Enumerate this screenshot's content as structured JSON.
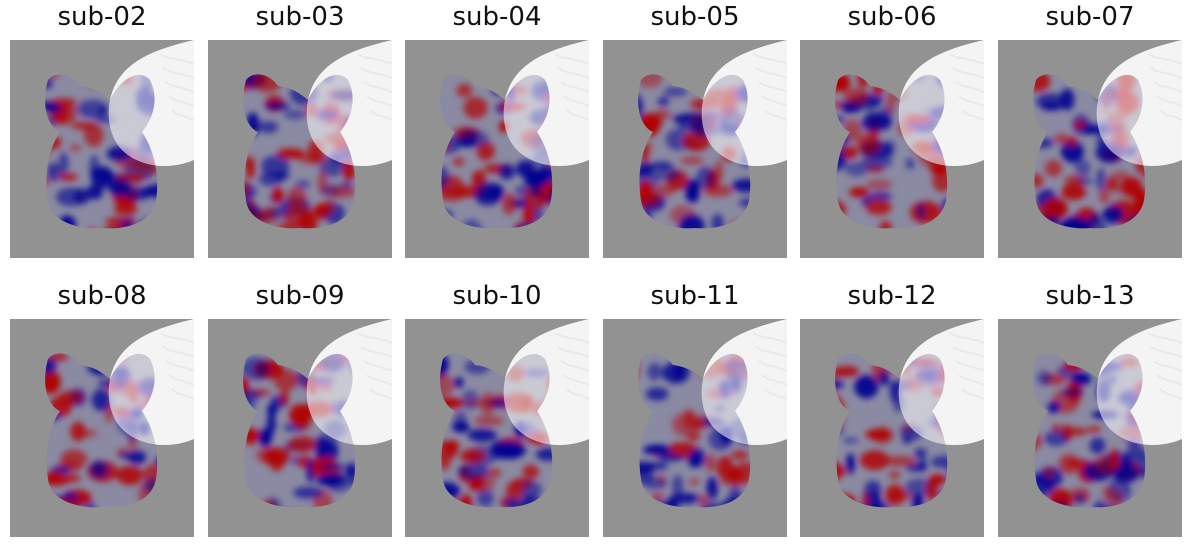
{
  "figure": {
    "panels": [
      {
        "title": "sub-02"
      },
      {
        "title": "sub-03"
      },
      {
        "title": "sub-04"
      },
      {
        "title": "sub-05"
      },
      {
        "title": "sub-06"
      },
      {
        "title": "sub-07"
      },
      {
        "title": "sub-08"
      },
      {
        "title": "sub-09"
      },
      {
        "title": "sub-10"
      },
      {
        "title": "sub-11"
      },
      {
        "title": "sub-12"
      },
      {
        "title": "sub-13"
      }
    ],
    "colors": {
      "background_gray": "#929292",
      "anatomy_white": "#e6e6e6",
      "positive": "#b00000",
      "negative": "#000090"
    }
  }
}
